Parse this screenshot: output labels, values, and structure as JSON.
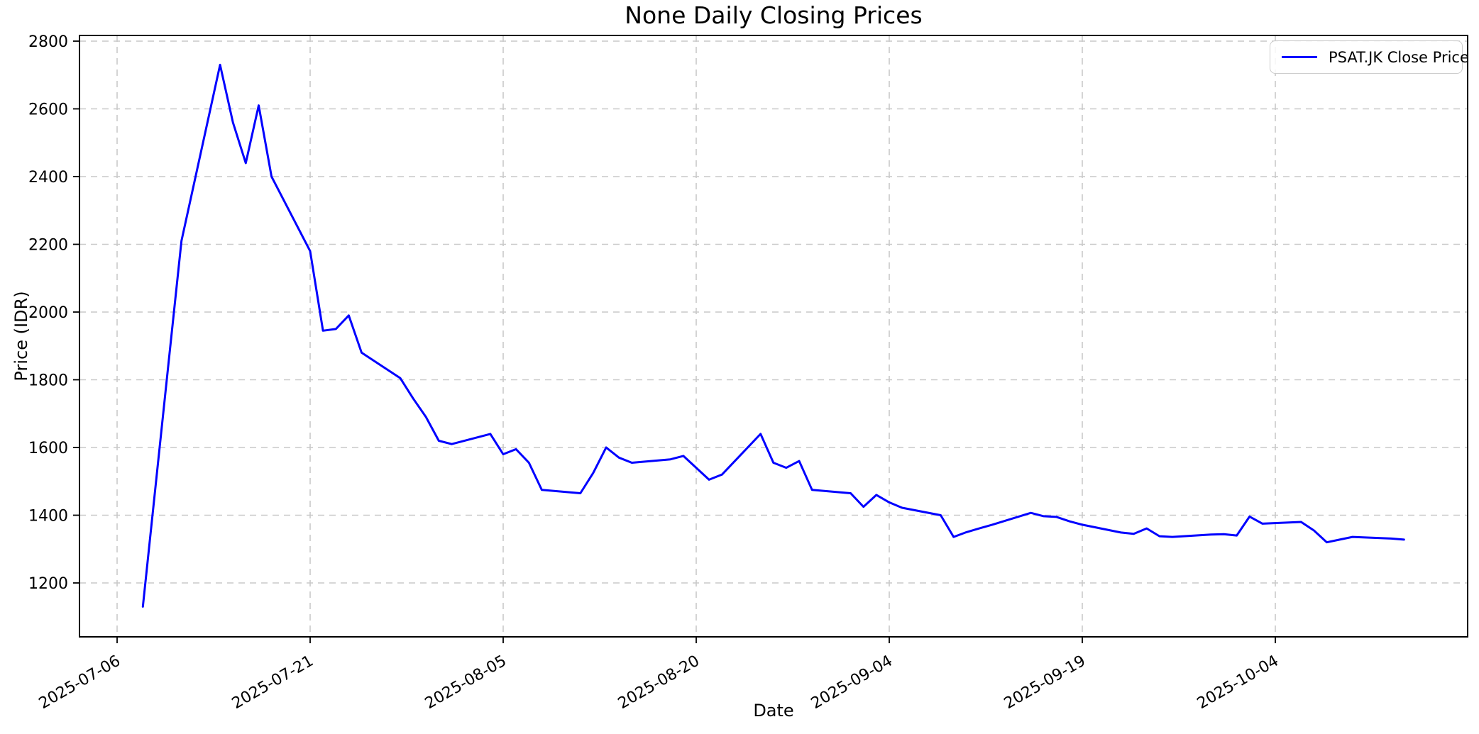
{
  "title": "None Daily Closing Prices",
  "axes": {
    "x_label": "Date",
    "y_label": "Price (IDR)"
  },
  "legend": {
    "label": "PSAT.JK Close Price",
    "position": "upper right"
  },
  "colors": {
    "line": "#0000ff",
    "grid": "#c9c9c9",
    "spine": "#000000",
    "background": "#ffffff",
    "text": "#000000",
    "legend_border": "#cccccc"
  },
  "chart_data": {
    "type": "line",
    "title": "None Daily Closing Prices",
    "xlabel": "Date",
    "ylabel": "Price (IDR)",
    "grid": true,
    "grid_style": "dashed",
    "legend_position": "upper right",
    "x_tick_labels": [
      "2025-07-06",
      "2025-07-21",
      "2025-08-05",
      "2025-08-20",
      "2025-09-04",
      "2025-09-19",
      "2025-10-04"
    ],
    "y_ticks": [
      1200,
      1400,
      1600,
      1800,
      2000,
      2200,
      2400,
      2600,
      2800
    ],
    "ylim": [
      1041,
      2817
    ],
    "xlim_dates": [
      "2025-07-03",
      "2025-10-19"
    ],
    "series": [
      {
        "name": "PSAT.JK Close Price",
        "dates": [
          "2025-07-08",
          "2025-07-09",
          "2025-07-10",
          "2025-07-11",
          "2025-07-14",
          "2025-07-15",
          "2025-07-16",
          "2025-07-17",
          "2025-07-18",
          "2025-07-21",
          "2025-07-22",
          "2025-07-23",
          "2025-07-24",
          "2025-07-25",
          "2025-07-28",
          "2025-07-29",
          "2025-07-30",
          "2025-07-31",
          "2025-08-01",
          "2025-08-04",
          "2025-08-05",
          "2025-08-06",
          "2025-08-07",
          "2025-08-08",
          "2025-08-11",
          "2025-08-12",
          "2025-08-13",
          "2025-08-14",
          "2025-08-15",
          "2025-08-18",
          "2025-08-19",
          "2025-08-20",
          "2025-08-21",
          "2025-08-22",
          "2025-08-25",
          "2025-08-26",
          "2025-08-27",
          "2025-08-28",
          "2025-08-29",
          "2025-09-01",
          "2025-09-02",
          "2025-09-03",
          "2025-09-04",
          "2025-09-05",
          "2025-09-08",
          "2025-09-09",
          "2025-09-10",
          "2025-09-11",
          "2025-09-12",
          "2025-09-15",
          "2025-09-16",
          "2025-09-17",
          "2025-09-18",
          "2025-09-19",
          "2025-09-22",
          "2025-09-23",
          "2025-09-24",
          "2025-09-25",
          "2025-09-26",
          "2025-09-29",
          "2025-09-30",
          "2025-10-01",
          "2025-10-02",
          "2025-10-03",
          "2025-10-06",
          "2025-10-07",
          "2025-10-08",
          "2025-10-09",
          "2025-10-10",
          "2025-10-13",
          "2025-10-14"
        ],
        "values": [
          1130,
          1490,
          1850,
          2210,
          2730,
          2560,
          2440,
          2610,
          2400,
          2180,
          1945,
          1950,
          1990,
          1880,
          1805,
          1745,
          1690,
          1620,
          1610,
          1640,
          1580,
          1595,
          1555,
          1475,
          1465,
          1525,
          1600,
          1570,
          1555,
          1565,
          1575,
          1540,
          1505,
          1520,
          1640,
          1555,
          1540,
          1560,
          1475,
          1465,
          1425,
          1460,
          1438,
          1422,
          1400,
          1336,
          1350,
          1361,
          1372,
          1407,
          1397,
          1395,
          1382,
          1372,
          1349,
          1345,
          1361,
          1338,
          1336,
          1343,
          1344,
          1340,
          1396,
          1375,
          1380,
          1355,
          1320,
          1328,
          1336,
          1331,
          1328
        ]
      }
    ]
  }
}
